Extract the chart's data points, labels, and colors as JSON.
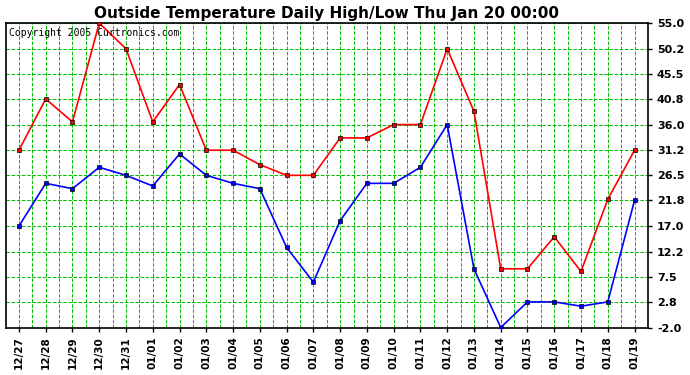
{
  "title": "Outside Temperature Daily High/Low Thu Jan 20 00:00",
  "copyright": "Copyright 2005 Curtronics.com",
  "x_labels": [
    "12/27",
    "12/28",
    "12/29",
    "12/30",
    "12/31",
    "01/01",
    "01/02",
    "01/03",
    "01/04",
    "01/05",
    "01/06",
    "01/07",
    "01/08",
    "01/09",
    "01/10",
    "01/11",
    "01/12",
    "01/13",
    "01/14",
    "01/15",
    "01/16",
    "01/17",
    "01/18",
    "01/19"
  ],
  "high_values": [
    31.2,
    40.8,
    36.5,
    55.0,
    50.2,
    36.5,
    43.5,
    31.2,
    31.2,
    28.5,
    26.5,
    26.5,
    33.5,
    33.5,
    36.0,
    36.0,
    50.2,
    38.5,
    9.0,
    9.0,
    15.0,
    8.5,
    22.0,
    31.2
  ],
  "low_values": [
    17.0,
    25.0,
    24.0,
    28.0,
    26.5,
    24.5,
    30.5,
    26.5,
    25.0,
    24.0,
    13.0,
    6.5,
    18.0,
    25.0,
    25.0,
    28.0,
    36.0,
    9.0,
    -2.0,
    2.8,
    2.8,
    2.0,
    2.8,
    21.8
  ],
  "ylim": [
    -2.0,
    55.0
  ],
  "yticks": [
    -2.0,
    2.8,
    7.5,
    12.2,
    17.0,
    21.8,
    26.5,
    31.2,
    36.0,
    40.8,
    45.5,
    50.2,
    55.0
  ],
  "bg_color": "#ffffff",
  "plot_bg_color": "#ffffff",
  "grid_color": "#00bb00",
  "high_color": "#ff0000",
  "low_color": "#0000ff",
  "title_color": "#000000",
  "border_color": "#000000",
  "title_fontsize": 11,
  "tick_fontsize": 8,
  "copyright_fontsize": 7
}
